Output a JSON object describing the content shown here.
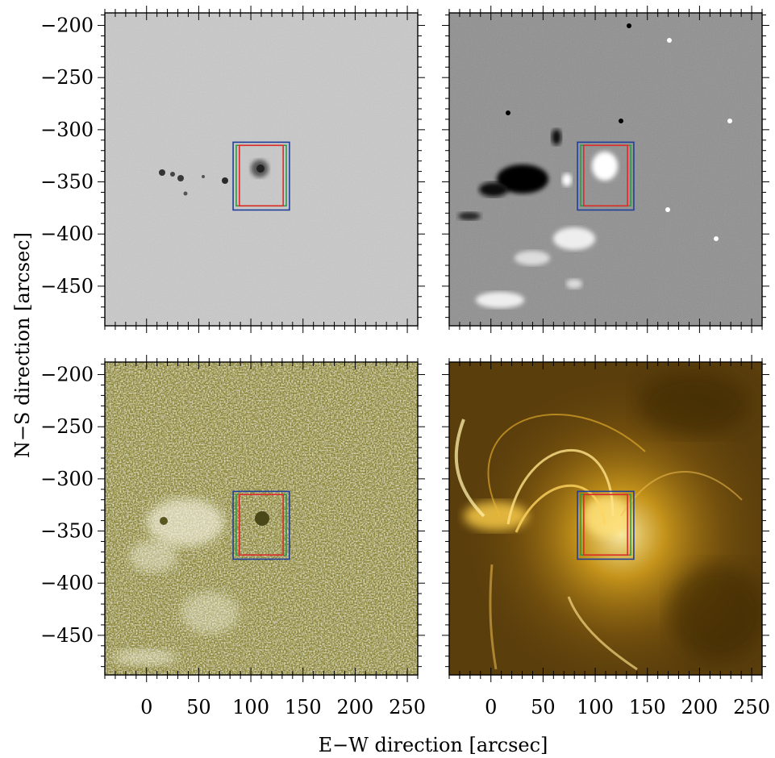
{
  "figure": {
    "xlabel": "E−W direction   [arcsec]",
    "ylabel": "N−S direction   [arcsec]",
    "x_ticks": [
      0,
      50,
      100,
      150,
      200,
      250
    ],
    "y_ticks": [
      -200,
      -250,
      -300,
      -350,
      -400,
      -450
    ],
    "x_tick_labels": [
      "0",
      "50",
      "100",
      "150",
      "200",
      "250"
    ],
    "y_tick_labels": [
      "−200",
      "−250",
      "−300",
      "−350",
      "−400",
      "−450"
    ],
    "x_range": [
      -40,
      260
    ],
    "y_range": [
      -188,
      -488
    ]
  },
  "panels": [
    {
      "id": "top-left",
      "kind": "continuum",
      "bg": "#c9c9c9",
      "show_y_labels": true,
      "show_x_labels": false
    },
    {
      "id": "top-right",
      "kind": "magnetogram",
      "bg": "#8f8f8f",
      "show_y_labels": false,
      "show_x_labels": false
    },
    {
      "id": "bottom-left",
      "kind": "chromosphere",
      "bg": "#8a8436",
      "show_y_labels": true,
      "show_x_labels": true
    },
    {
      "id": "bottom-right",
      "kind": "coronal",
      "bg": "#5a3e0c",
      "show_y_labels": false,
      "show_x_labels": true
    }
  ],
  "boxes": [
    {
      "name": "blue-box",
      "color": "#1f3f9a",
      "x": [
        83,
        137
      ],
      "y": [
        -312,
        -377
      ]
    },
    {
      "name": "green-box",
      "color": "#2e9a4a",
      "x": [
        86,
        134
      ],
      "y": [
        -315,
        -373
      ]
    },
    {
      "name": "red-box",
      "color": "#e02a2a",
      "x": [
        89,
        131
      ],
      "y": [
        -315,
        -373
      ]
    }
  ]
}
